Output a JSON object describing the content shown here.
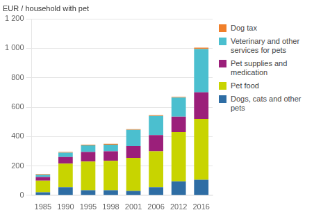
{
  "chart_data": {
    "type": "bar",
    "stacked": true,
    "ylabel": "EUR / household with pet",
    "categories": [
      "1985",
      "1990",
      "1995",
      "1998",
      "2001",
      "2006",
      "2012",
      "2016"
    ],
    "series": [
      {
        "name": "Dogs, cats and other\npets",
        "color": "#2e6da4",
        "values": [
          20,
          55,
          35,
          35,
          30,
          55,
          95,
          105
        ]
      },
      {
        "name": "Pet food",
        "color": "#c8d400",
        "values": [
          80,
          160,
          195,
          200,
          225,
          245,
          335,
          415
        ]
      },
      {
        "name": "Pet supplies and\nmedication",
        "color": "#9b1f7a",
        "values": [
          25,
          45,
          65,
          65,
          80,
          110,
          105,
          180
        ]
      },
      {
        "name": "Veterinary and other\nservices for pets",
        "color": "#4bbfcf",
        "values": [
          15,
          30,
          45,
          45,
          110,
          130,
          130,
          295
        ]
      },
      {
        "name": "Dog tax",
        "color": "#f07f2a",
        "values": [
          5,
          5,
          5,
          5,
          5,
          5,
          5,
          10
        ]
      }
    ],
    "ylim": [
      0,
      1200
    ],
    "yticks": [
      0,
      200,
      400,
      600,
      800,
      {
        "value": 1000,
        "label": "1 000"
      },
      {
        "value": 1200,
        "label": "1 200"
      }
    ],
    "grid": true,
    "legend": "right"
  }
}
